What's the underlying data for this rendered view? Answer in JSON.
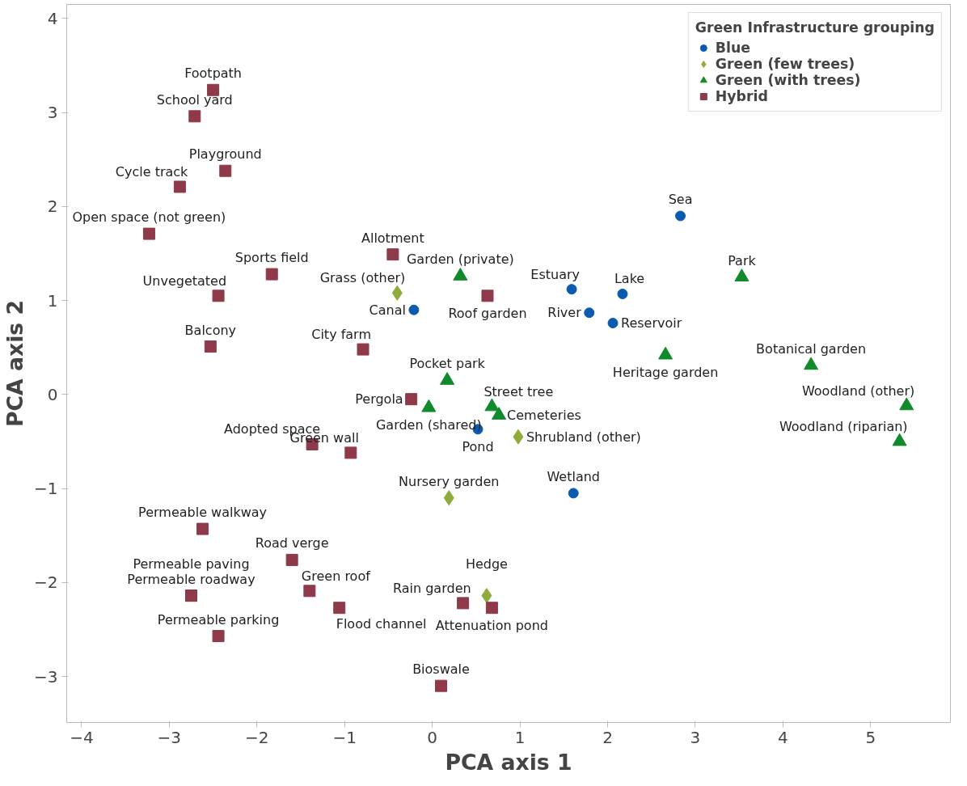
{
  "chart_data": {
    "type": "scatter",
    "xlabel": "PCA axis 1",
    "ylabel": "PCA axis 2",
    "legend_title": "Green Infrastructure grouping",
    "legend": "top right",
    "grid": false,
    "xlim": [
      -4.17,
      5.91
    ],
    "ylim": [
      -3.49,
      4.15
    ],
    "xticks": [
      -4,
      -3,
      -2,
      -1,
      0,
      1,
      2,
      3,
      4,
      5
    ],
    "yticks": [
      -3,
      -2,
      -1,
      0,
      1,
      2,
      3,
      4
    ],
    "series": [
      {
        "name": "Blue",
        "color": "#0a5bb0",
        "marker": "circle",
        "x": [
          2.83,
          1.59,
          2.17,
          1.79,
          2.06,
          -0.21,
          0.52,
          1.61
        ],
        "values": [
          1.9,
          1.12,
          1.07,
          0.87,
          0.76,
          0.9,
          -0.37,
          -1.05
        ],
        "value_labels": [
          "Sea",
          "Estuary",
          "Lake",
          "River",
          "Reservoir",
          "Canal",
          "Pond",
          "Wetland"
        ]
      },
      {
        "name": "Green (few trees)",
        "color": "#8fac3a",
        "marker": "diamond",
        "x": [
          -0.4,
          0.98,
          0.19,
          0.62
        ],
        "values": [
          1.08,
          -0.45,
          -1.1,
          -2.14
        ],
        "value_labels": [
          "Grass (other)",
          "Shrubland (other)",
          "Nursery garden",
          "Hedge"
        ]
      },
      {
        "name": "Green (with trees)",
        "color": "#118a2c",
        "marker": "triangle",
        "x": [
          0.32,
          3.53,
          2.66,
          4.32,
          5.41,
          5.33,
          0.17,
          0.68,
          0.76,
          -0.04
        ],
        "values": [
          1.26,
          1.25,
          0.42,
          0.31,
          -0.12,
          -0.5,
          0.15,
          -0.13,
          -0.22,
          -0.14
        ],
        "value_labels": [
          "Garden (private)",
          "Park",
          "Heritage garden",
          "Botanical garden",
          "Woodland (other)",
          "Woodland (riparian)",
          "Pocket park",
          "Street tree",
          "Cemeteries",
          "Garden (shared)"
        ]
      },
      {
        "name": "Hybrid",
        "color": "#8e3a4a",
        "marker": "square",
        "x": [
          -2.5,
          -2.71,
          -2.36,
          -2.88,
          -3.23,
          -1.83,
          -2.44,
          -2.53,
          -0.45,
          0.63,
          -0.79,
          -0.24,
          -1.37,
          -0.93,
          -2.62,
          -1.6,
          -2.75,
          -2.75,
          -1.4,
          -1.06,
          -2.44,
          0.35,
          0.68,
          0.1
        ],
        "values": [
          3.24,
          2.96,
          2.38,
          2.21,
          1.71,
          1.28,
          1.05,
          0.51,
          1.49,
          1.05,
          0.48,
          -0.05,
          -0.53,
          -0.62,
          -1.43,
          -1.76,
          -2.14,
          -2.14,
          -2.09,
          -2.27,
          -2.57,
          -2.22,
          -2.27,
          -3.1
        ],
        "value_labels": [
          "Footpath",
          "School yard",
          "Playground",
          "Cycle track",
          "Open space (not green)",
          "Sports field",
          "Unvegetated",
          "Balcony",
          "Allotment",
          "Roof garden",
          "City farm",
          "Pergola",
          "Adopted space",
          "Green wall",
          "Permeable walkway",
          "Road verge",
          "Permeable paving",
          "Permeable roadway",
          "Green roof",
          "Flood channel",
          "Permeable parking",
          "Rain garden",
          "Attenuation pond",
          "Bioswale"
        ]
      }
    ]
  }
}
